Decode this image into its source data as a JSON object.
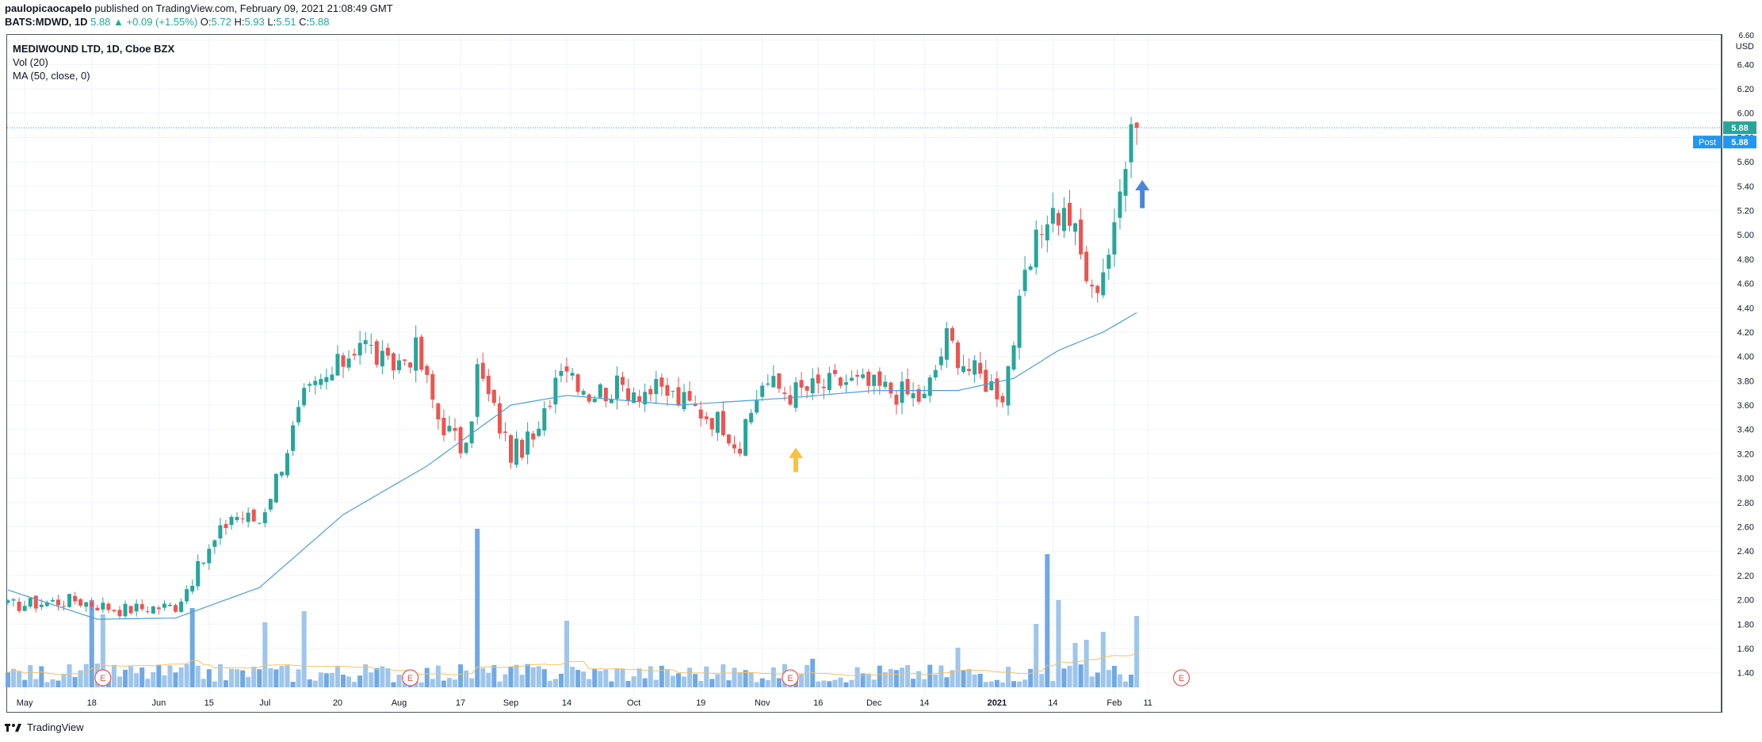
{
  "header": {
    "author": "paulopicaocapelo",
    "published_text": " published on TradingView.com, February 09, 2021 21:08:49 GMT",
    "symbol": "BATS:MDWD, 1D",
    "last": "5.88",
    "change": "▲ +0.09 (+1.55%)",
    "o_label": "O:",
    "o_value": "5.72",
    "h_label": "H:",
    "h_value": "5.93",
    "l_label": "L:",
    "l_value": "5.51",
    "c_label": "C:",
    "c_value": "5.88"
  },
  "legend": {
    "title": "MEDIWOUND LTD, 1D, Cboe BZX",
    "vol": "Vol (20)",
    "ma": "MA (50, close, 0)"
  },
  "price_axis": {
    "currency": "USD",
    "post_label": "Post",
    "last_badge": "5.88",
    "post_badge": "5.88"
  },
  "footer": {
    "brand": "TradingView"
  },
  "colors": {
    "up": "#26a69a",
    "down": "#ef5350",
    "vol_up": "#9ec5ec",
    "vol_down": "#6fa8e6",
    "ma": "#4a9fd9",
    "vol_ma": "#f3c262",
    "grid": "#f0f3fa",
    "last_line": "#2196f3",
    "earnings": "#ef5350",
    "arrow_yellow": "#f9c13b",
    "arrow_blue": "#4a86d9"
  },
  "chart_data": {
    "type": "candlestick",
    "title": "MEDIWOUND LTD, 1D, Cboe BZX",
    "x_axis_labels": [
      "May",
      "18",
      "Jun",
      "15",
      "Jul",
      "20",
      "Aug",
      "17",
      "Sep",
      "14",
      "Oct",
      "19",
      "Nov",
      "16",
      "Dec",
      "14",
      "2021",
      "14",
      "Feb",
      "11"
    ],
    "y_ticks": [
      "6.60",
      "6.40",
      "6.20",
      "6.00",
      "5.80",
      "5.60",
      "5.40",
      "5.20",
      "5.00",
      "4.80",
      "4.60",
      "4.40",
      "4.20",
      "4.00",
      "3.80",
      "3.60",
      "3.40",
      "3.20",
      "3.00",
      "2.80",
      "2.60",
      "2.40",
      "2.20",
      "2.00",
      "1.80",
      "1.60",
      "1.40"
    ],
    "ylim": [
      1.3,
      6.65
    ],
    "last_price": 5.88,
    "price_anchors": [
      {
        "x": 0,
        "p": 1.95
      },
      {
        "x": 12,
        "p": 2.0
      },
      {
        "x": 20,
        "p": 1.92
      },
      {
        "x": 30,
        "p": 1.95
      },
      {
        "x": 36,
        "p": 2.4
      },
      {
        "x": 40,
        "p": 2.7
      },
      {
        "x": 45,
        "p": 2.65
      },
      {
        "x": 48,
        "p": 3.0
      },
      {
        "x": 53,
        "p": 3.65
      },
      {
        "x": 58,
        "p": 3.85
      },
      {
        "x": 63,
        "p": 4.15
      },
      {
        "x": 68,
        "p": 3.9
      },
      {
        "x": 73,
        "p": 4.05
      },
      {
        "x": 77,
        "p": 3.5
      },
      {
        "x": 82,
        "p": 3.2
      },
      {
        "x": 84,
        "p": 3.9
      },
      {
        "x": 90,
        "p": 3.2
      },
      {
        "x": 95,
        "p": 3.35
      },
      {
        "x": 99,
        "p": 4.0
      },
      {
        "x": 104,
        "p": 3.7
      },
      {
        "x": 110,
        "p": 3.75
      },
      {
        "x": 118,
        "p": 3.7
      },
      {
        "x": 128,
        "p": 3.45
      },
      {
        "x": 131,
        "p": 3.25
      },
      {
        "x": 135,
        "p": 3.8
      },
      {
        "x": 140,
        "p": 3.7
      },
      {
        "x": 150,
        "p": 3.8
      },
      {
        "x": 160,
        "p": 3.7
      },
      {
        "x": 164,
        "p": 3.65
      },
      {
        "x": 168,
        "p": 4.15
      },
      {
        "x": 172,
        "p": 3.9
      },
      {
        "x": 178,
        "p": 3.7
      },
      {
        "x": 182,
        "p": 4.6
      },
      {
        "x": 186,
        "p": 5.2
      },
      {
        "x": 190,
        "p": 5.15
      },
      {
        "x": 194,
        "p": 4.5
      },
      {
        "x": 198,
        "p": 5.0
      },
      {
        "x": 201,
        "p": 6.05
      },
      {
        "x": 202,
        "p": 5.88
      }
    ],
    "ma50_anchors": [
      {
        "x": 0,
        "p": 2.08
      },
      {
        "x": 16,
        "p": 1.84
      },
      {
        "x": 30,
        "p": 1.85
      },
      {
        "x": 45,
        "p": 2.1
      },
      {
        "x": 60,
        "p": 2.7
      },
      {
        "x": 75,
        "p": 3.1
      },
      {
        "x": 90,
        "p": 3.6
      },
      {
        "x": 100,
        "p": 3.68
      },
      {
        "x": 120,
        "p": 3.6
      },
      {
        "x": 140,
        "p": 3.66
      },
      {
        "x": 155,
        "p": 3.72
      },
      {
        "x": 170,
        "p": 3.72
      },
      {
        "x": 180,
        "p": 3.82
      },
      {
        "x": 188,
        "p": 4.05
      },
      {
        "x": 196,
        "p": 4.2
      },
      {
        "x": 202,
        "p": 4.36
      }
    ],
    "volume_spikes": [
      {
        "x": 15,
        "v": 0.55
      },
      {
        "x": 17,
        "v": 0.46
      },
      {
        "x": 33,
        "v": 0.5
      },
      {
        "x": 46,
        "v": 0.41
      },
      {
        "x": 53,
        "v": 0.48
      },
      {
        "x": 84,
        "v": 1.0
      },
      {
        "x": 100,
        "v": 0.42
      },
      {
        "x": 144,
        "v": 0.18
      },
      {
        "x": 170,
        "v": 0.25
      },
      {
        "x": 184,
        "v": 0.4
      },
      {
        "x": 186,
        "v": 0.84
      },
      {
        "x": 188,
        "v": 0.55
      },
      {
        "x": 191,
        "v": 0.28
      },
      {
        "x": 193,
        "v": 0.3
      },
      {
        "x": 196,
        "v": 0.35
      },
      {
        "x": 202,
        "v": 0.45
      }
    ],
    "earnings_markers": [
      17,
      72,
      140,
      210
    ],
    "annotations": [
      {
        "type": "arrow-up",
        "color": "yellow",
        "x": 141,
        "price_top": 3.25,
        "price_bottom": 3.05
      },
      {
        "type": "arrow-up",
        "color": "blue",
        "x": 203,
        "price_top": 5.45,
        "price_bottom": 5.22
      }
    ]
  }
}
